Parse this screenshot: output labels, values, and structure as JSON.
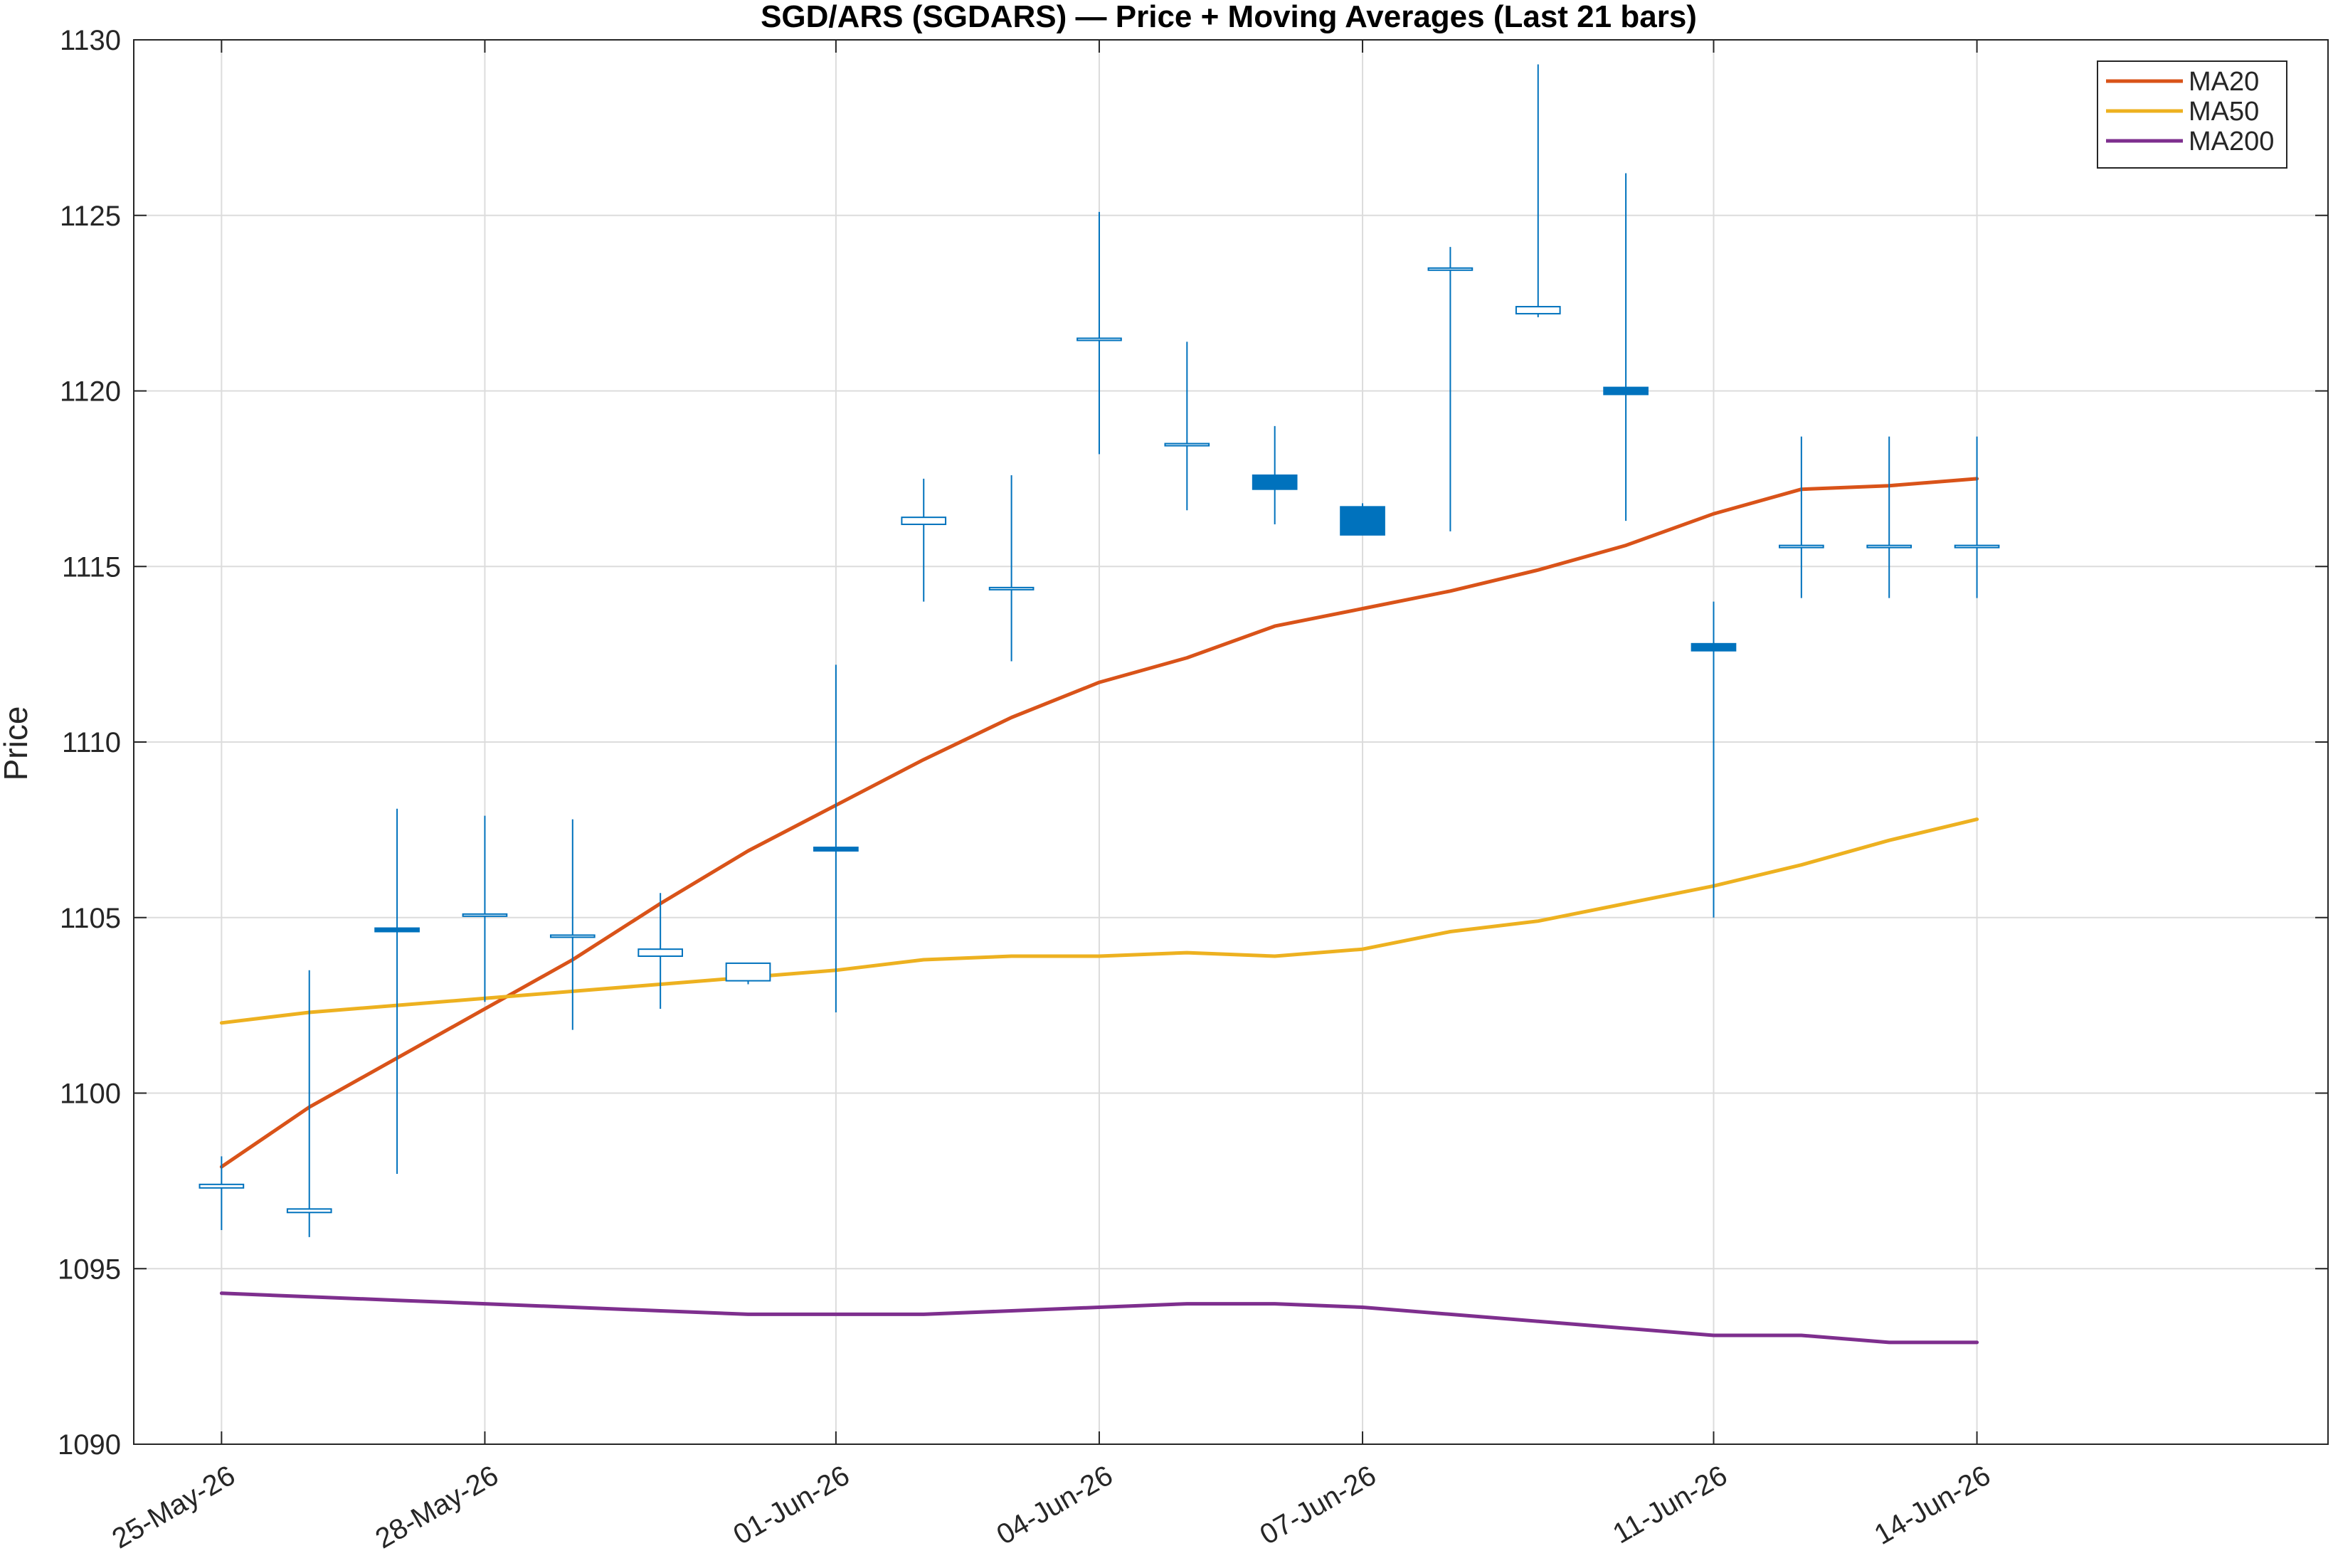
{
  "chart_data": {
    "type": "candlestick",
    "title": "SGD/ARS (SGDARS) — Price + Moving Averages (Last 21 bars)",
    "xlabel": "",
    "ylabel": "Price",
    "ylim": [
      1090,
      1130
    ],
    "yticks": [
      1090,
      1095,
      1100,
      1105,
      1110,
      1115,
      1120,
      1125,
      1130
    ],
    "xlim": [
      -1,
      24
    ],
    "xticks": [
      {
        "index": 0,
        "label": "25-May-26"
      },
      {
        "index": 3,
        "label": "28-May-26"
      },
      {
        "index": 7,
        "label": "01-Jun-26"
      },
      {
        "index": 10,
        "label": "04-Jun-26"
      },
      {
        "index": 13,
        "label": "07-Jun-26"
      },
      {
        "index": 17,
        "label": "11-Jun-26"
      },
      {
        "index": 20,
        "label": "14-Jun-26"
      }
    ],
    "grid": true,
    "legend_position": "top-right",
    "colors": {
      "candle": "#0072BD",
      "ma20": "#D95319",
      "ma50": "#EDB120",
      "ma200": "#7E2F8E",
      "grid": "#dcdcdc",
      "axis": "#262626"
    },
    "candles": [
      {
        "index": 0,
        "open": 1097.3,
        "high": 1098.2,
        "low": 1096.1,
        "close": 1097.4
      },
      {
        "index": 1,
        "open": 1096.6,
        "high": 1103.5,
        "low": 1095.9,
        "close": 1096.7
      },
      {
        "index": 2,
        "open": 1104.7,
        "high": 1108.1,
        "low": 1097.7,
        "close": 1104.6
      },
      {
        "index": 3,
        "open": 1105.1,
        "high": 1107.9,
        "low": 1102.6,
        "close": 1105.1
      },
      {
        "index": 4,
        "open": 1104.5,
        "high": 1107.8,
        "low": 1101.8,
        "close": 1104.5
      },
      {
        "index": 5,
        "open": 1103.9,
        "high": 1105.7,
        "low": 1102.4,
        "close": 1104.1
      },
      {
        "index": 6,
        "open": 1103.2,
        "high": 1103.7,
        "low": 1103.1,
        "close": 1103.7
      },
      {
        "index": 7,
        "open": 1107.0,
        "high": 1112.2,
        "low": 1102.3,
        "close": 1106.9
      },
      {
        "index": 8,
        "open": 1116.2,
        "high": 1117.5,
        "low": 1114.0,
        "close": 1116.4
      },
      {
        "index": 9,
        "open": 1114.4,
        "high": 1117.6,
        "low": 1112.3,
        "close": 1114.4
      },
      {
        "index": 10,
        "open": 1121.5,
        "high": 1125.1,
        "low": 1118.2,
        "close": 1121.5
      },
      {
        "index": 11,
        "open": 1118.5,
        "high": 1121.4,
        "low": 1116.6,
        "close": 1118.5
      },
      {
        "index": 12,
        "open": 1117.6,
        "high": 1119.0,
        "low": 1116.2,
        "close": 1117.2
      },
      {
        "index": 13,
        "open": 1116.7,
        "high": 1116.8,
        "low": 1115.9,
        "close": 1115.9
      },
      {
        "index": 14,
        "open": 1123.5,
        "high": 1124.1,
        "low": 1116.0,
        "close": 1123.5
      },
      {
        "index": 15,
        "open": 1122.2,
        "high": 1129.3,
        "low": 1122.1,
        "close": 1122.4
      },
      {
        "index": 16,
        "open": 1120.1,
        "high": 1126.2,
        "low": 1116.3,
        "close": 1119.9
      },
      {
        "index": 17,
        "open": 1112.8,
        "high": 1114.0,
        "low": 1105.0,
        "close": 1112.6
      },
      {
        "index": 18,
        "open": 1115.6,
        "high": 1118.7,
        "low": 1114.1,
        "close": 1115.6
      },
      {
        "index": 19,
        "open": 1115.6,
        "high": 1118.7,
        "low": 1114.1,
        "close": 1115.6
      },
      {
        "index": 20,
        "open": 1115.6,
        "high": 1118.7,
        "low": 1114.1,
        "close": 1115.6
      }
    ],
    "series": [
      {
        "name": "MA20",
        "color": "#D95319",
        "x": [
          0,
          1,
          2,
          3,
          4,
          5,
          6,
          7,
          8,
          9,
          10,
          11,
          12,
          13,
          14,
          15,
          16,
          17,
          18,
          19,
          20
        ],
        "values": [
          1097.9,
          1099.6,
          1101.0,
          1102.4,
          1103.8,
          1105.4,
          1106.9,
          1108.2,
          1109.5,
          1110.7,
          1111.7,
          1112.4,
          1113.3,
          1113.8,
          1114.3,
          1114.9,
          1115.6,
          1116.5,
          1117.2,
          1117.3,
          1117.5
        ]
      },
      {
        "name": "MA50",
        "color": "#EDB120",
        "x": [
          0,
          1,
          2,
          3,
          4,
          5,
          6,
          7,
          8,
          9,
          10,
          11,
          12,
          13,
          14,
          15,
          16,
          17,
          18,
          19,
          20
        ],
        "values": [
          1102.0,
          1102.3,
          1102.5,
          1102.7,
          1102.9,
          1103.1,
          1103.3,
          1103.5,
          1103.8,
          1103.9,
          1103.9,
          1104.0,
          1103.9,
          1104.1,
          1104.6,
          1104.9,
          1105.4,
          1105.9,
          1106.5,
          1107.2,
          1107.8
        ]
      },
      {
        "name": "MA200",
        "color": "#7E2F8E",
        "x": [
          0,
          1,
          2,
          3,
          4,
          5,
          6,
          7,
          8,
          9,
          10,
          11,
          12,
          13,
          14,
          15,
          16,
          17,
          18,
          19,
          20
        ],
        "values": [
          1094.3,
          1094.2,
          1094.1,
          1094.0,
          1093.9,
          1093.8,
          1093.7,
          1093.7,
          1093.7,
          1093.8,
          1093.9,
          1094.0,
          1094.0,
          1093.9,
          1093.7,
          1093.5,
          1093.3,
          1093.1,
          1093.1,
          1092.9,
          1092.9
        ]
      }
    ]
  }
}
